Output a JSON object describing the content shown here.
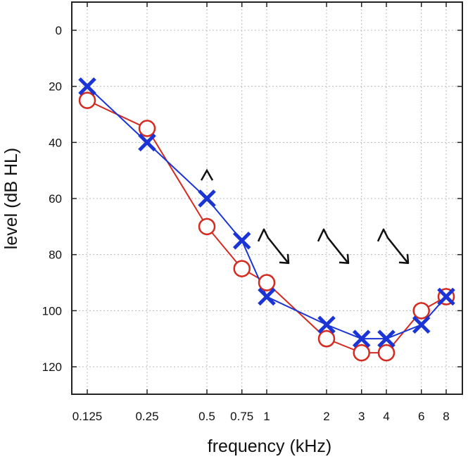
{
  "chart_data": {
    "type": "line",
    "xlabel": "frequency (kHz)",
    "ylabel": "level (dB HL)",
    "x_scale": "log",
    "y_inverted": true,
    "ylim": [
      -10,
      130
    ],
    "xlim": [
      0.125,
      8
    ],
    "grid": true,
    "x_ticks": [
      {
        "value": 0.125,
        "label": "0.125"
      },
      {
        "value": 0.25,
        "label": "0.25"
      },
      {
        "value": 0.5,
        "label": "0.5"
      },
      {
        "value": 0.75,
        "label": "0.75"
      },
      {
        "value": 1,
        "label": "1"
      },
      {
        "value": 2,
        "label": "2"
      },
      {
        "value": 3,
        "label": "3"
      },
      {
        "value": 4,
        "label": "4"
      },
      {
        "value": 6,
        "label": "6"
      },
      {
        "value": 8,
        "label": "8"
      }
    ],
    "y_ticks": [
      {
        "value": 0,
        "label": "0"
      },
      {
        "value": 20,
        "label": "20"
      },
      {
        "value": 40,
        "label": "40"
      },
      {
        "value": 60,
        "label": "60"
      },
      {
        "value": 80,
        "label": "80"
      },
      {
        "value": 100,
        "label": "100"
      },
      {
        "value": 120,
        "label": "120"
      }
    ],
    "series": [
      {
        "marker": "circle",
        "color": "#d42a20",
        "x": [
          0.125,
          0.25,
          0.5,
          0.75,
          1,
          2,
          3,
          4,
          6,
          8
        ],
        "values": [
          25,
          35,
          70,
          85,
          90,
          110,
          115,
          115,
          100,
          95
        ]
      },
      {
        "marker": "x",
        "color": "#1a34d6",
        "x": [
          0.125,
          0.25,
          0.5,
          0.75,
          1,
          2,
          3,
          4,
          6,
          8
        ],
        "values": [
          20,
          40,
          60,
          75,
          95,
          105,
          110,
          110,
          105,
          95
        ]
      }
    ],
    "annotations": [
      {
        "symbol": "caret",
        "x": 0.5,
        "y": 51
      },
      {
        "symbol": "caret-arrow",
        "x": 1,
        "y": 72
      },
      {
        "symbol": "caret-arrow",
        "x": 2,
        "y": 72
      },
      {
        "symbol": "caret-arrow",
        "x": 4,
        "y": 72
      }
    ],
    "annotation_color": "#111111"
  }
}
